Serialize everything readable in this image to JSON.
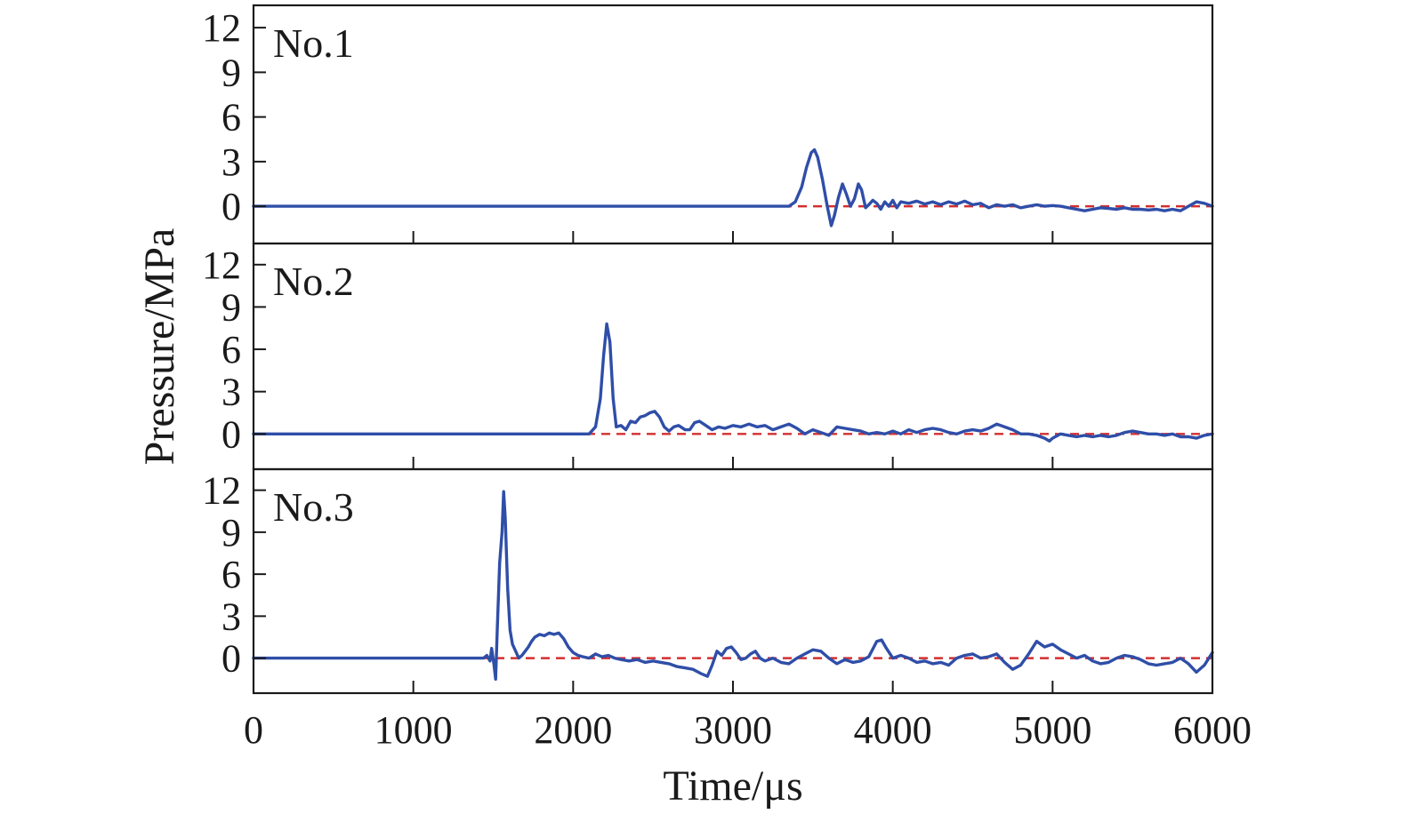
{
  "chart_data": {
    "type": "line",
    "xlabel": "Time/μs",
    "ylabel": "Pressure/MPa",
    "xlim": [
      0,
      6000
    ],
    "ylim": [
      -2.5,
      13.5
    ],
    "x_ticks": [
      0,
      1000,
      2000,
      3000,
      4000,
      5000,
      6000
    ],
    "y_ticks": [
      0,
      3,
      6,
      9,
      12
    ],
    "grid": false,
    "series_color": "#2f4ea8",
    "baseline_color": "#d32f2f",
    "baseline_value": 0,
    "panels": [
      {
        "name": "No.1",
        "points": [
          [
            0,
            0
          ],
          [
            3350,
            0
          ],
          [
            3390,
            0.3
          ],
          [
            3430,
            1.3
          ],
          [
            3460,
            2.6
          ],
          [
            3490,
            3.6
          ],
          [
            3510,
            3.8
          ],
          [
            3530,
            3.3
          ],
          [
            3560,
            1.8
          ],
          [
            3590,
            0
          ],
          [
            3615,
            -1.3
          ],
          [
            3635,
            -0.6
          ],
          [
            3660,
            0.6
          ],
          [
            3685,
            1.5
          ],
          [
            3710,
            0.8
          ],
          [
            3735,
            0
          ],
          [
            3760,
            0.5
          ],
          [
            3785,
            1.5
          ],
          [
            3805,
            1.1
          ],
          [
            3830,
            -0.1
          ],
          [
            3850,
            0.1
          ],
          [
            3875,
            0.4
          ],
          [
            3900,
            0.2
          ],
          [
            3925,
            -0.2
          ],
          [
            3950,
            0.3
          ],
          [
            3975,
            0
          ],
          [
            4000,
            0.4
          ],
          [
            4025,
            -0.1
          ],
          [
            4050,
            0.3
          ],
          [
            4100,
            0.2
          ],
          [
            4150,
            0.35
          ],
          [
            4200,
            0.15
          ],
          [
            4250,
            0.3
          ],
          [
            4300,
            0.1
          ],
          [
            4350,
            0.3
          ],
          [
            4400,
            0.15
          ],
          [
            4450,
            0.35
          ],
          [
            4500,
            0.1
          ],
          [
            4550,
            0.2
          ],
          [
            4600,
            -0.1
          ],
          [
            4650,
            0.1
          ],
          [
            4700,
            0
          ],
          [
            4750,
            0.1
          ],
          [
            4800,
            -0.1
          ],
          [
            4850,
            0
          ],
          [
            4900,
            0.1
          ],
          [
            4950,
            0
          ],
          [
            5000,
            0.05
          ],
          [
            5050,
            0
          ],
          [
            5100,
            -0.1
          ],
          [
            5150,
            -0.2
          ],
          [
            5200,
            -0.3
          ],
          [
            5250,
            -0.2
          ],
          [
            5300,
            -0.1
          ],
          [
            5350,
            -0.15
          ],
          [
            5400,
            -0.2
          ],
          [
            5450,
            -0.1
          ],
          [
            5500,
            -0.2
          ],
          [
            5550,
            -0.2
          ],
          [
            5600,
            -0.25
          ],
          [
            5650,
            -0.2
          ],
          [
            5700,
            -0.3
          ],
          [
            5750,
            -0.2
          ],
          [
            5800,
            -0.3
          ],
          [
            5850,
            0
          ],
          [
            5900,
            0.3
          ],
          [
            5950,
            0.2
          ],
          [
            6000,
            0
          ]
        ]
      },
      {
        "name": "No.2",
        "points": [
          [
            0,
            0
          ],
          [
            2100,
            0
          ],
          [
            2140,
            0.5
          ],
          [
            2170,
            2.5
          ],
          [
            2190,
            5.5
          ],
          [
            2210,
            7.8
          ],
          [
            2230,
            6.5
          ],
          [
            2250,
            2.5
          ],
          [
            2270,
            0.5
          ],
          [
            2300,
            0.6
          ],
          [
            2330,
            0.3
          ],
          [
            2360,
            0.9
          ],
          [
            2390,
            0.8
          ],
          [
            2420,
            1.2
          ],
          [
            2450,
            1.3
          ],
          [
            2480,
            1.5
          ],
          [
            2510,
            1.6
          ],
          [
            2540,
            1.2
          ],
          [
            2570,
            0.5
          ],
          [
            2600,
            0.2
          ],
          [
            2630,
            0.5
          ],
          [
            2660,
            0.6
          ],
          [
            2700,
            0.3
          ],
          [
            2730,
            0.3
          ],
          [
            2760,
            0.8
          ],
          [
            2790,
            0.9
          ],
          [
            2830,
            0.6
          ],
          [
            2870,
            0.3
          ],
          [
            2910,
            0.5
          ],
          [
            2950,
            0.4
          ],
          [
            3000,
            0.6
          ],
          [
            3050,
            0.5
          ],
          [
            3100,
            0.7
          ],
          [
            3150,
            0.5
          ],
          [
            3200,
            0.6
          ],
          [
            3250,
            0.3
          ],
          [
            3300,
            0.5
          ],
          [
            3350,
            0.7
          ],
          [
            3400,
            0.4
          ],
          [
            3450,
            0
          ],
          [
            3500,
            0.3
          ],
          [
            3550,
            0.1
          ],
          [
            3600,
            -0.1
          ],
          [
            3650,
            0.5
          ],
          [
            3700,
            0.4
          ],
          [
            3750,
            0.3
          ],
          [
            3800,
            0.2
          ],
          [
            3850,
            0
          ],
          [
            3900,
            0.1
          ],
          [
            3950,
            0
          ],
          [
            4000,
            0.2
          ],
          [
            4050,
            0
          ],
          [
            4100,
            0.3
          ],
          [
            4150,
            0.1
          ],
          [
            4200,
            0.3
          ],
          [
            4250,
            0.4
          ],
          [
            4300,
            0.3
          ],
          [
            4350,
            0.1
          ],
          [
            4400,
            0
          ],
          [
            4450,
            0.2
          ],
          [
            4500,
            0.3
          ],
          [
            4550,
            0.2
          ],
          [
            4600,
            0.4
          ],
          [
            4650,
            0.7
          ],
          [
            4700,
            0.5
          ],
          [
            4750,
            0.3
          ],
          [
            4800,
            0
          ],
          [
            4850,
            0
          ],
          [
            4900,
            -0.1
          ],
          [
            4950,
            -0.3
          ],
          [
            4980,
            -0.5
          ],
          [
            5000,
            -0.3
          ],
          [
            5050,
            0
          ],
          [
            5100,
            -0.1
          ],
          [
            5150,
            -0.2
          ],
          [
            5200,
            -0.1
          ],
          [
            5250,
            -0.2
          ],
          [
            5300,
            -0.1
          ],
          [
            5350,
            -0.2
          ],
          [
            5400,
            -0.1
          ],
          [
            5450,
            0.1
          ],
          [
            5500,
            0.2
          ],
          [
            5550,
            0.1
          ],
          [
            5600,
            0
          ],
          [
            5650,
            0
          ],
          [
            5700,
            -0.1
          ],
          [
            5750,
            0
          ],
          [
            5800,
            -0.2
          ],
          [
            5850,
            -0.2
          ],
          [
            5900,
            -0.3
          ],
          [
            5950,
            -0.1
          ],
          [
            6000,
            0
          ]
        ]
      },
      {
        "name": "No.3",
        "points": [
          [
            0,
            0
          ],
          [
            1400,
            0
          ],
          [
            1440,
            0
          ],
          [
            1460,
            0.2
          ],
          [
            1480,
            -0.2
          ],
          [
            1490,
            0.7
          ],
          [
            1505,
            -0.5
          ],
          [
            1515,
            -1.5
          ],
          [
            1525,
            2
          ],
          [
            1540,
            6.8
          ],
          [
            1555,
            9
          ],
          [
            1565,
            11.9
          ],
          [
            1575,
            10
          ],
          [
            1590,
            5
          ],
          [
            1605,
            2
          ],
          [
            1620,
            1
          ],
          [
            1640,
            0.5
          ],
          [
            1660,
            0
          ],
          [
            1680,
            0.2
          ],
          [
            1700,
            0.5
          ],
          [
            1720,
            0.8
          ],
          [
            1740,
            1.2
          ],
          [
            1760,
            1.5
          ],
          [
            1790,
            1.7
          ],
          [
            1820,
            1.6
          ],
          [
            1850,
            1.8
          ],
          [
            1880,
            1.7
          ],
          [
            1910,
            1.8
          ],
          [
            1940,
            1.4
          ],
          [
            1970,
            0.8
          ],
          [
            2000,
            0.4
          ],
          [
            2030,
            0.2
          ],
          [
            2060,
            0.1
          ],
          [
            2100,
            0
          ],
          [
            2140,
            0.3
          ],
          [
            2180,
            0.1
          ],
          [
            2220,
            0.2
          ],
          [
            2260,
            0
          ],
          [
            2300,
            -0.1
          ],
          [
            2350,
            -0.2
          ],
          [
            2400,
            -0.1
          ],
          [
            2450,
            -0.3
          ],
          [
            2500,
            -0.2
          ],
          [
            2550,
            -0.3
          ],
          [
            2600,
            -0.4
          ],
          [
            2650,
            -0.6
          ],
          [
            2700,
            -0.7
          ],
          [
            2750,
            -0.8
          ],
          [
            2800,
            -1.1
          ],
          [
            2840,
            -1.3
          ],
          [
            2870,
            -0.5
          ],
          [
            2900,
            0.5
          ],
          [
            2930,
            0.2
          ],
          [
            2960,
            0.7
          ],
          [
            2990,
            0.8
          ],
          [
            3020,
            0.4
          ],
          [
            3050,
            -0.1
          ],
          [
            3080,
            0
          ],
          [
            3110,
            0.3
          ],
          [
            3140,
            0.5
          ],
          [
            3170,
            0
          ],
          [
            3200,
            -0.2
          ],
          [
            3250,
            0
          ],
          [
            3300,
            -0.3
          ],
          [
            3350,
            -0.4
          ],
          [
            3400,
            0
          ],
          [
            3450,
            0.3
          ],
          [
            3500,
            0.6
          ],
          [
            3550,
            0.5
          ],
          [
            3600,
            0
          ],
          [
            3650,
            -0.4
          ],
          [
            3700,
            -0.1
          ],
          [
            3750,
            -0.3
          ],
          [
            3800,
            -0.2
          ],
          [
            3850,
            0.1
          ],
          [
            3900,
            1.2
          ],
          [
            3930,
            1.3
          ],
          [
            3960,
            0.7
          ],
          [
            4000,
            0
          ],
          [
            4050,
            0.2
          ],
          [
            4100,
            0
          ],
          [
            4150,
            -0.3
          ],
          [
            4200,
            -0.2
          ],
          [
            4250,
            -0.4
          ],
          [
            4300,
            -0.3
          ],
          [
            4350,
            -0.5
          ],
          [
            4400,
            0
          ],
          [
            4450,
            0.2
          ],
          [
            4500,
            0.3
          ],
          [
            4550,
            0
          ],
          [
            4600,
            0.1
          ],
          [
            4650,
            0.3
          ],
          [
            4700,
            -0.3
          ],
          [
            4750,
            -0.8
          ],
          [
            4800,
            -0.5
          ],
          [
            4850,
            0.3
          ],
          [
            4900,
            1.2
          ],
          [
            4950,
            0.8
          ],
          [
            5000,
            1
          ],
          [
            5050,
            0.6
          ],
          [
            5100,
            0.3
          ],
          [
            5150,
            0
          ],
          [
            5200,
            0.2
          ],
          [
            5250,
            -0.2
          ],
          [
            5300,
            -0.4
          ],
          [
            5350,
            -0.3
          ],
          [
            5400,
            0
          ],
          [
            5450,
            0.2
          ],
          [
            5500,
            0.1
          ],
          [
            5550,
            -0.1
          ],
          [
            5600,
            -0.4
          ],
          [
            5650,
            -0.5
          ],
          [
            5700,
            -0.4
          ],
          [
            5750,
            -0.3
          ],
          [
            5800,
            0
          ],
          [
            5850,
            -0.4
          ],
          [
            5900,
            -1
          ],
          [
            5950,
            -0.5
          ],
          [
            6000,
            0.4
          ]
        ]
      }
    ]
  }
}
